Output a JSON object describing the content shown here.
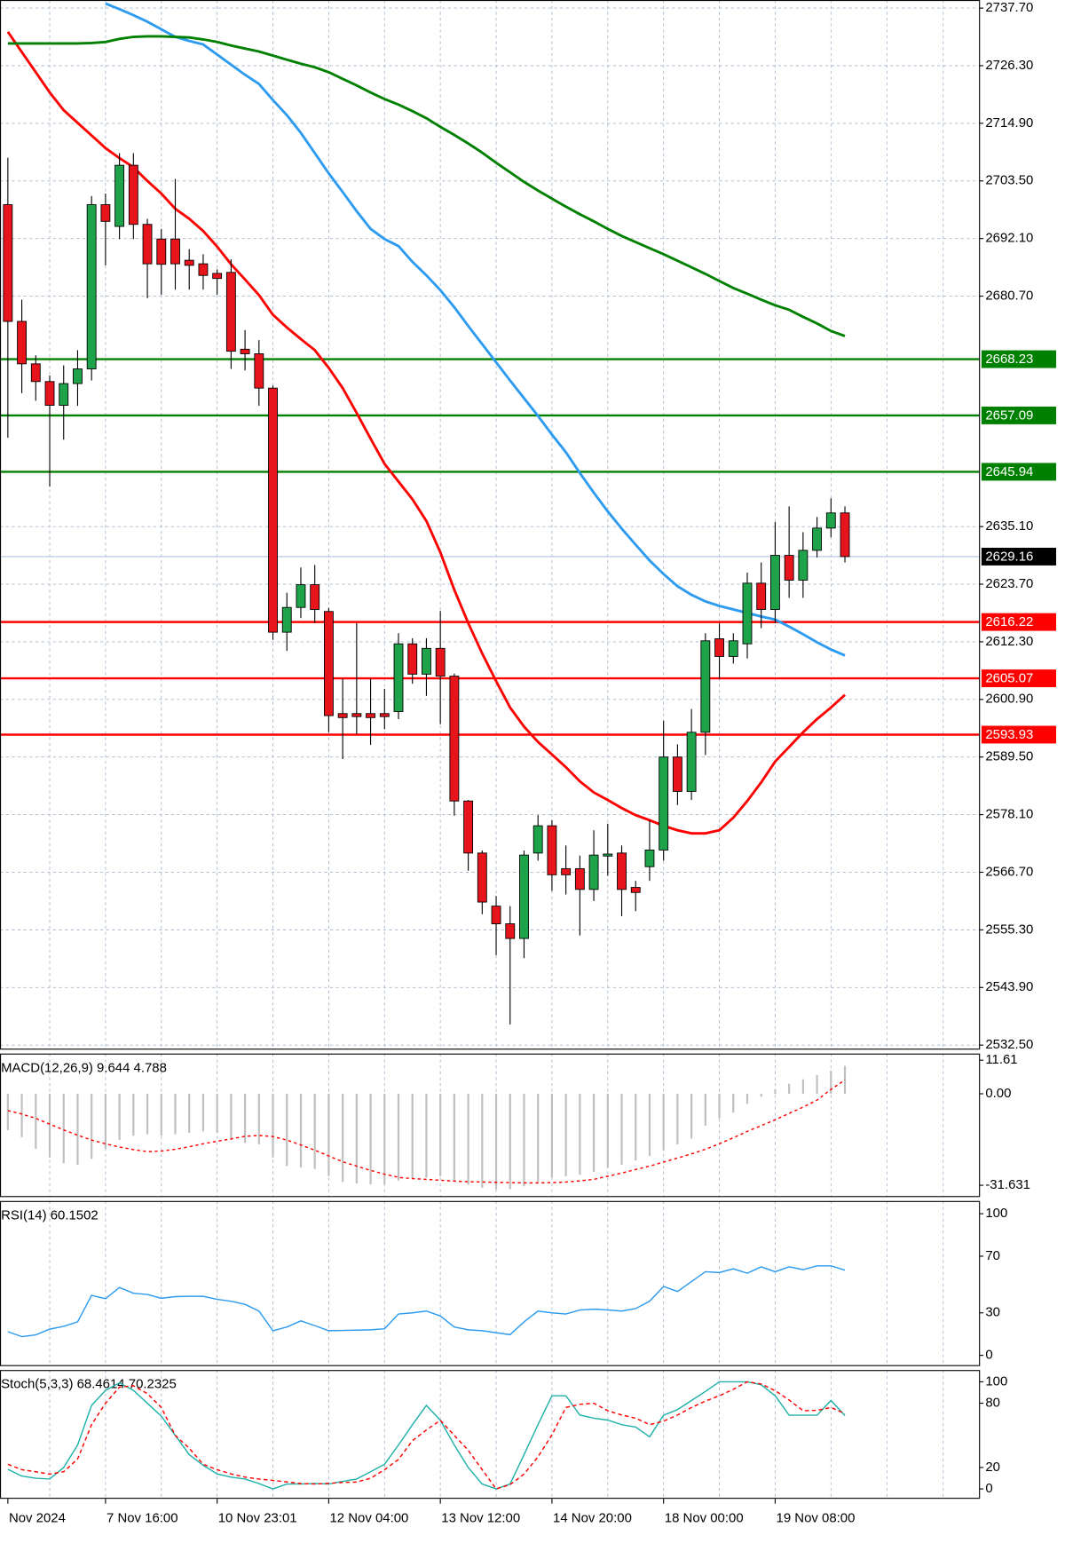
{
  "chart_data": [
    {
      "type": "candlestick",
      "categories": [
        "Nov 2024",
        null,
        null,
        null,
        null,
        null,
        null,
        "7 Nov 16:00",
        null,
        null,
        null,
        null,
        null,
        null,
        null,
        "10 Nov 23:01",
        null,
        null,
        null,
        null,
        null,
        null,
        null,
        "12 Nov 04:00",
        null,
        null,
        null,
        null,
        null,
        null,
        null,
        "13 Nov 12:00",
        null,
        null,
        null,
        null,
        null,
        null,
        null,
        "14 Nov 20:00",
        null,
        null,
        null,
        null,
        null,
        null,
        null,
        "18 Nov 00:00",
        null,
        null,
        null,
        null,
        null,
        null,
        null,
        "19 Nov 08:00",
        null,
        null,
        null,
        null,
        null
      ],
      "open": [
        2698.8,
        2675.7,
        2667.3,
        2663.8,
        2659.1,
        2663.4,
        2666.3,
        2698.8,
        2694.5,
        2706.6,
        2694.9,
        2692,
        2692,
        2687.8,
        2687.1,
        2685.2,
        2685.4,
        2670.2,
        2669.3,
        2662.5,
        2614.2,
        2619.1,
        2623.6,
        2618.3,
        2598.1,
        2598.1,
        2598.1,
        2598.1,
        2598.5,
        2611.9,
        2605.9,
        2611,
        2605.5,
        2580.8,
        2570.5,
        2560,
        2556.5,
        2553.6,
        2570.5,
        2575.9,
        2567.4,
        2567.4,
        2563.3,
        2569.9,
        2570.5,
        2563.7,
        2567.8,
        2571.1,
        2589.5,
        2582.7,
        2594.4,
        2612.9,
        2609.4,
        2611.9,
        2623.9,
        2618.7,
        2629.4,
        2624.5,
        2630.4,
        2634.8,
        2637.8
      ],
      "high": [
        2708.1,
        2680,
        2669,
        2665,
        2667,
        2670,
        2700.5,
        2701,
        2709,
        2709,
        2696,
        2694,
        2703.9,
        2690,
        2689,
        2686,
        2688,
        2674,
        2672,
        2663,
        2622,
        2627,
        2627.5,
        2619,
        2605,
        2616,
        2605,
        2603,
        2614,
        2613,
        2613,
        2618.4,
        2606,
        2581,
        2571,
        2562,
        2560,
        2571,
        2578,
        2577,
        2572,
        2570,
        2575,
        2576.3,
        2572,
        2565,
        2577,
        2596.7,
        2592,
        2599,
        2614,
        2616,
        2614,
        2626,
        2628,
        2636,
        2639.1,
        2634,
        2637,
        2640.7,
        2639.1
      ],
      "low": [
        2652.7,
        2661.5,
        2660,
        2643,
        2652.3,
        2659,
        2664,
        2686.8,
        2692,
        2692,
        2680.3,
        2681,
        2682,
        2682,
        2682,
        2681,
        2666.3,
        2666,
        2659,
        2612.7,
        2610.5,
        2617,
        2616,
        2594.4,
        2589.1,
        2594,
        2591.9,
        2595,
        2597,
        2604,
        2601.6,
        2596,
        2577.9,
        2567,
        2558.4,
        2550.3,
        2536.6,
        2549.7,
        2569,
        2563,
        2562.3,
        2554.2,
        2561,
        2566,
        2558,
        2559,
        2565,
        2569,
        2580,
        2581,
        2589.9,
        2605,
        2608,
        2609,
        2615,
        2616,
        2621,
        2621,
        2629,
        2633,
        2628
      ],
      "close": [
        2675.7,
        2667.3,
        2663.8,
        2659.1,
        2663.4,
        2666.3,
        2698.8,
        2695.5,
        2706.6,
        2694.9,
        2687.1,
        2687,
        2687.1,
        2686.8,
        2684.8,
        2684.2,
        2669.8,
        2669.3,
        2662.5,
        2614.2,
        2619.1,
        2623.6,
        2618.7,
        2597.7,
        2597.3,
        2597.5,
        2597.3,
        2597.5,
        2611.9,
        2605.9,
        2611,
        2605.5,
        2580.8,
        2570.5,
        2560.8,
        2556.5,
        2553.6,
        2570.1,
        2575.9,
        2566.2,
        2566.2,
        2563.3,
        2570.1,
        2570.3,
        2563.3,
        2562.7,
        2571.1,
        2589.5,
        2582.7,
        2594.4,
        2612.5,
        2609.4,
        2612.5,
        2623.9,
        2618.7,
        2629.4,
        2624.5,
        2630.4,
        2634.8,
        2637.8,
        2629.16
      ],
      "up_color": "#1fa34a",
      "down_color": "#e8141b",
      "series": [
        {
          "color": "#ff0000",
          "values": [
            2733,
            2729,
            2725,
            2721,
            2717.5,
            2715,
            2712.5,
            2710,
            2708,
            2706.2,
            2703.5,
            2701,
            2698,
            2696,
            2693.6,
            2690.5,
            2687,
            2684,
            2680.9,
            2677,
            2674.5,
            2672.2,
            2670,
            2666.5,
            2662.5,
            2657.6,
            2652.5,
            2647.5,
            2644,
            2640.5,
            2636.2,
            2630,
            2622.6,
            2616,
            2610,
            2604.5,
            2599.3,
            2595.5,
            2592.5,
            2590,
            2587.5,
            2584.7,
            2582.5,
            2581,
            2579.4,
            2578,
            2577,
            2575.9,
            2575,
            2574.4,
            2574.4,
            2575,
            2577.5,
            2580.8,
            2584.5,
            2588.6,
            2591.5,
            2594.4,
            2597,
            2599.3,
            2601.8
          ]
        },
        {
          "color": "#2d9bf0",
          "values": [
            null,
            null,
            null,
            null,
            null,
            null,
            null,
            2738.6,
            2737.5,
            2736.3,
            2735,
            2733.5,
            2732,
            2731.2,
            2730.5,
            2728.5,
            2726.5,
            2724.5,
            2722.7,
            2719.5,
            2716.5,
            2713,
            2709,
            2705,
            2701.3,
            2697.5,
            2694,
            2692,
            2690.6,
            2687.5,
            2684.8,
            2681.9,
            2678.5,
            2674.8,
            2671.2,
            2667.6,
            2664,
            2660.5,
            2657,
            2653.3,
            2649.8,
            2645.7,
            2641.8,
            2638.1,
            2634.7,
            2631.5,
            2628.4,
            2625.7,
            2623.3,
            2621.6,
            2620.3,
            2619.4,
            2618.7,
            2618,
            2617.3,
            2616.7,
            2615.3,
            2613.8,
            2612.2,
            2610.8,
            2609.6
          ]
        },
        {
          "color": "#008000",
          "values": [
            2730.7,
            2730.7,
            2730.7,
            2730.7,
            2730.7,
            2730.7,
            2730.8,
            2731,
            2731.6,
            2732,
            2732.1,
            2732.1,
            2732,
            2731.9,
            2731.5,
            2731,
            2730.3,
            2729.7,
            2729.1,
            2728.3,
            2727.5,
            2726.7,
            2726,
            2725,
            2723.7,
            2722.4,
            2721,
            2719.7,
            2718.6,
            2717.3,
            2715.9,
            2714.2,
            2712.6,
            2710.9,
            2709.1,
            2707.1,
            2705.2,
            2703.3,
            2701.6,
            2700,
            2698.4,
            2696.9,
            2695.5,
            2694,
            2692.6,
            2691.4,
            2690.2,
            2689,
            2687.7,
            2686.4,
            2685.1,
            2683.7,
            2682.3,
            2681.2,
            2680,
            2678.9,
            2678,
            2676.6,
            2675.3,
            2673.8,
            2672.8
          ]
        }
      ],
      "levels": [
        {
          "value": 2668.23,
          "color": "#008000"
        },
        {
          "value": 2657.09,
          "color": "#008000"
        },
        {
          "value": 2645.94,
          "color": "#008000"
        },
        {
          "value": 2616.22,
          "color": "#ff0000"
        },
        {
          "value": 2605.07,
          "color": "#ff0000"
        },
        {
          "value": 2593.93,
          "color": "#ff0000"
        }
      ],
      "current_price": 2629.16,
      "ylim": [
        2531.6,
        2739.3
      ],
      "yticks": [
        {
          "value": 2737.7,
          "label": "2737.70"
        },
        {
          "value": 2726.3,
          "label": "2726.30"
        },
        {
          "value": 2714.9,
          "label": "2714.90"
        },
        {
          "value": 2703.5,
          "label": "2703.50"
        },
        {
          "value": 2692.1,
          "label": "2692.10"
        },
        {
          "value": 2680.7,
          "label": "2680.70"
        },
        {
          "value": 2635.1,
          "label": "2635.10"
        },
        {
          "value": 2623.7,
          "label": "2623.70"
        },
        {
          "value": 2612.3,
          "label": "2612.30"
        },
        {
          "value": 2600.9,
          "label": "2600.90"
        },
        {
          "value": 2589.5,
          "label": "2589.50"
        },
        {
          "value": 2578.1,
          "label": "2578.10"
        },
        {
          "value": 2566.7,
          "label": "2566.70"
        },
        {
          "value": 2555.3,
          "label": "2555.30"
        },
        {
          "value": 2543.9,
          "label": "2543.90"
        },
        {
          "value": 2532.5,
          "label": "2532.50"
        }
      ],
      "grid": true
    },
    {
      "type": "macd",
      "label": "MACD(12,26,9) 9.644 4.788",
      "histogram": [
        -12.6,
        -15,
        -19,
        -22,
        -24,
        -24.5,
        -22.5,
        -19,
        -16,
        -14.5,
        -14,
        -14.5,
        -14,
        -13.5,
        -13,
        -13.5,
        -16,
        -17,
        -17.5,
        -22,
        -25,
        -25.5,
        -26,
        -28.5,
        -30.5,
        -31,
        -31.3,
        -31.3,
        -30,
        -29.5,
        -29,
        -28.5,
        -30,
        -31.5,
        -32.5,
        -33,
        -33,
        -32,
        -30.5,
        -29,
        -28.5,
        -28,
        -27,
        -25.5,
        -24.5,
        -23,
        -21.5,
        -19.5,
        -17.5,
        -15.5,
        -11,
        -8.5,
        -6.5,
        -3.5,
        -1,
        1.5,
        3.5,
        5,
        6.5,
        8,
        9.644
      ],
      "histogram_color": "#c0c0c0",
      "signal": [
        -5.8,
        -7,
        -8.5,
        -10.5,
        -12.5,
        -14.3,
        -16,
        -17.3,
        -18.4,
        -19.3,
        -20,
        -19.8,
        -19.2,
        -18.3,
        -17.3,
        -16.4,
        -15.6,
        -14.7,
        -14.4,
        -14.8,
        -16,
        -17.7,
        -19.5,
        -21.5,
        -23.5,
        -25,
        -26.5,
        -27.8,
        -28.9,
        -29.3,
        -29.6,
        -29.9,
        -30.2,
        -30.4,
        -30.5,
        -30.6,
        -30.7,
        -30.8,
        -30.8,
        -30.7,
        -30.5,
        -30.1,
        -29.6,
        -28.5,
        -27.4,
        -26.2,
        -25,
        -23.6,
        -22.2,
        -20.8,
        -19.2,
        -17.3,
        -15.2,
        -13,
        -11,
        -9,
        -6.8,
        -4.6,
        -2.2,
        1.5,
        4.788
      ],
      "signal_color": "#ff0000",
      "ylim": [
        -35.7,
        13.9
      ],
      "yticks": [
        11.61,
        {
          "value": 0,
          "label": "0.00"
        },
        -31.631
      ]
    },
    {
      "type": "line",
      "label": "RSI(14) 60.1502",
      "series": [
        {
          "color": "#2d9bf0",
          "values": [
            16.7,
            13.2,
            14.5,
            18.5,
            20.5,
            23.6,
            42.4,
            40,
            47.9,
            43.8,
            43,
            40.3,
            41.5,
            41.7,
            41.7,
            39.5,
            38.2,
            36,
            31.3,
            17.4,
            20,
            24.3,
            21,
            17.4,
            17.6,
            17.8,
            18,
            18.8,
            29.2,
            30,
            31.3,
            27.8,
            20,
            18,
            17.4,
            16,
            14.6,
            23.6,
            31.3,
            30,
            29.2,
            32,
            32.6,
            32,
            31.3,
            33,
            38.2,
            48.6,
            45.1,
            52.1,
            59,
            58.5,
            61.1,
            58,
            62.5,
            59,
            62.5,
            60.5,
            63.2,
            63.2,
            60.1502
          ]
        }
      ],
      "ylim": [
        -7.6,
        109
      ],
      "yticks": [
        100,
        70,
        30,
        0
      ]
    },
    {
      "type": "line",
      "label": "Stoch(5,3,3) 68.4614 70.2325",
      "series": [
        {
          "color": "#20b2aa",
          "values": [
            18.3,
            12,
            10,
            9.2,
            20,
            41,
            78,
            92,
            99,
            92,
            80,
            68,
            50,
            32,
            22,
            14,
            11,
            9.2,
            5,
            0,
            4.6,
            4.6,
            5,
            4.6,
            7,
            9.2,
            16,
            23,
            41,
            60,
            78,
            64,
            41,
            20,
            4.6,
            0,
            4.6,
            32,
            60,
            87,
            87,
            69,
            66,
            64.2,
            60,
            57.8,
            48.6,
            68.8,
            74,
            82.6,
            91,
            100,
            100,
            100,
            97.2,
            87,
            68.8,
            68.8,
            68.8,
            82.6,
            68.4614
          ]
        },
        {
          "color": "#ff0000",
          "dashed": true,
          "values": [
            23,
            18,
            16,
            13.8,
            16,
            28,
            60,
            80,
            95,
            96.3,
            89,
            76,
            50,
            38,
            23,
            18,
            14,
            11,
            9.2,
            8,
            6.5,
            5,
            4.6,
            5.2,
            6,
            6.4,
            10,
            18,
            27.5,
            45,
            55,
            64,
            50,
            36,
            18,
            0,
            4,
            13.8,
            30,
            50.5,
            76,
            79,
            80,
            73,
            69,
            66,
            60,
            63.3,
            69,
            76,
            82,
            87,
            93,
            100,
            98,
            91.7,
            83,
            73,
            73.4,
            76,
            70.2325
          ]
        }
      ],
      "ylim": [
        -9.2,
        111
      ],
      "yticks": [
        100,
        80,
        20,
        0
      ]
    }
  ]
}
